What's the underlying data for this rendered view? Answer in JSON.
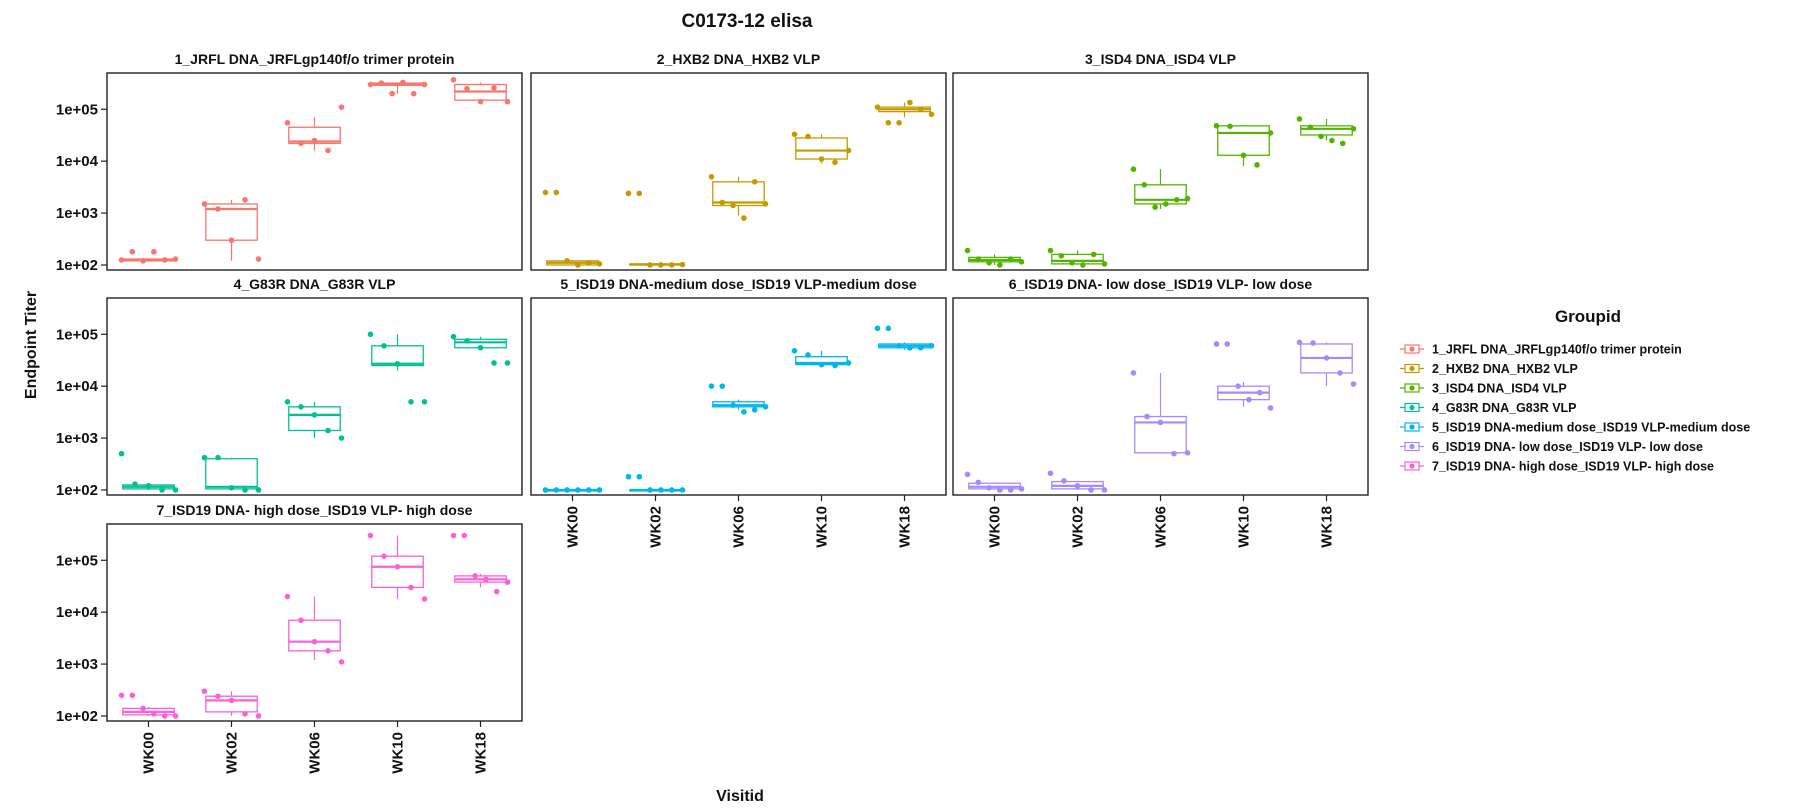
{
  "chart_data": {
    "type": "box",
    "title": "C0173-12 elisa",
    "xlabel": "Visitid",
    "ylabel": "Endpoint Titer",
    "yscale": "log10",
    "ylim": [
      80,
      500000
    ],
    "yticks": [
      100,
      1000,
      10000,
      100000
    ],
    "ytick_labels": [
      "1e+02",
      "1e+03",
      "1e+04",
      "1e+05"
    ],
    "categories": [
      "WK00",
      "WK02",
      "WK06",
      "WK10",
      "WK18"
    ],
    "legend": {
      "title": "Groupid",
      "position": "right"
    },
    "series": [
      {
        "name": "1_JRFL DNA_JRFLgp140f/o trimer protein",
        "color": "#F8766D",
        "boxes": [
          {
            "q1": 120,
            "median": 125,
            "q3": 130,
            "lo": 115,
            "hi": 135,
            "points": [
              125,
              180,
              120,
              180,
              125,
              130
            ]
          },
          {
            "q1": 300,
            "median": 1200,
            "q3": 1500,
            "lo": 120,
            "hi": 1800,
            "points": [
              1500,
              1200,
              300,
              1800,
              130
            ]
          },
          {
            "q1": 22000,
            "median": 24000,
            "q3": 45000,
            "lo": 16000,
            "hi": 70000,
            "points": [
              55000,
              22000,
              25000,
              16000,
              110000
            ]
          },
          {
            "q1": 290000,
            "median": 300000,
            "q3": 320000,
            "lo": 200000,
            "hi": 330000,
            "points": [
              300000,
              320000,
              200000,
              330000,
              200000,
              300000
            ]
          },
          {
            "q1": 150000,
            "median": 220000,
            "q3": 300000,
            "lo": 130000,
            "hi": 330000,
            "points": [
              370000,
              250000,
              140000,
              260000,
              140000
            ]
          }
        ]
      },
      {
        "name": "2_HXB2 DNA_HXB2 VLP",
        "color": "#C49A00",
        "boxes": [
          {
            "q1": 100,
            "median": 110,
            "q3": 120,
            "lo": 100,
            "hi": 125,
            "points": [
              2500,
              2500,
              120,
              100,
              110,
              105
            ]
          },
          {
            "q1": 100,
            "median": 102,
            "q3": 105,
            "lo": 100,
            "hi": 105,
            "points": [
              2400,
              2400,
              100,
              100,
              100,
              102
            ]
          },
          {
            "q1": 1400,
            "median": 1600,
            "q3": 4000,
            "lo": 900,
            "hi": 5000,
            "points": [
              5000,
              1600,
              1400,
              800,
              4000,
              1500
            ]
          },
          {
            "q1": 11000,
            "median": 16000,
            "q3": 28000,
            "lo": 9000,
            "hi": 33000,
            "points": [
              33000,
              30000,
              11000,
              9500,
              16000
            ]
          },
          {
            "q1": 90000,
            "median": 100000,
            "q3": 110000,
            "lo": 70000,
            "hi": 135000,
            "points": [
              110000,
              55000,
              55000,
              135000,
              100000,
              80000
            ]
          }
        ]
      },
      {
        "name": "3_ISD4 DNA_ISD4 VLP",
        "color": "#53B400",
        "boxes": [
          {
            "q1": 115,
            "median": 125,
            "q3": 140,
            "lo": 100,
            "hi": 160,
            "points": [
              190,
              130,
              110,
              100,
              130,
              115
            ]
          },
          {
            "q1": 105,
            "median": 120,
            "q3": 160,
            "lo": 100,
            "hi": 190,
            "points": [
              190,
              150,
              110,
              100,
              160,
              105
            ]
          },
          {
            "q1": 1500,
            "median": 1800,
            "q3": 3500,
            "lo": 1200,
            "hi": 7000,
            "points": [
              7000,
              3500,
              1300,
              1500,
              1800,
              1900
            ]
          },
          {
            "q1": 13000,
            "median": 35000,
            "q3": 48000,
            "lo": 8000,
            "hi": 50000,
            "points": [
              48000,
              47000,
              13000,
              8500,
              35000
            ]
          },
          {
            "q1": 32000,
            "median": 42000,
            "q3": 48000,
            "lo": 25000,
            "hi": 65000,
            "points": [
              65000,
              45000,
              30000,
              25000,
              22000,
              42000
            ]
          }
        ]
      },
      {
        "name": "4_G83R DNA_G83R VLP",
        "color": "#00C094",
        "boxes": [
          {
            "q1": 105,
            "median": 115,
            "q3": 125,
            "lo": 100,
            "hi": 130,
            "points": [
              500,
              130,
              120,
              100,
              100
            ]
          },
          {
            "q1": 105,
            "median": 115,
            "q3": 400,
            "lo": 100,
            "hi": 420,
            "points": [
              420,
              420,
              110,
              100,
              100
            ]
          },
          {
            "q1": 1400,
            "median": 2800,
            "q3": 4000,
            "lo": 1000,
            "hi": 5000,
            "points": [
              5000,
              4000,
              2800,
              1400,
              1000
            ]
          },
          {
            "q1": 25000,
            "median": 27000,
            "q3": 60000,
            "lo": 20000,
            "hi": 100000,
            "points": [
              100000,
              60000,
              27000,
              5000,
              5000
            ]
          },
          {
            "q1": 55000,
            "median": 70000,
            "q3": 80000,
            "lo": 50000,
            "hi": 90000,
            "points": [
              90000,
              75000,
              55000,
              28000,
              28000
            ]
          }
        ]
      },
      {
        "name": "5_ISD19 DNA-medium dose_ISD19 VLP-medium dose",
        "color": "#00B6EB",
        "boxes": [
          {
            "q1": 100,
            "median": 100,
            "q3": 100,
            "lo": 100,
            "hi": 100,
            "points": [
              100,
              100,
              100,
              100,
              100,
              100
            ]
          },
          {
            "q1": 100,
            "median": 100,
            "q3": 100,
            "lo": 100,
            "hi": 100,
            "points": [
              180,
              180,
              100,
              100,
              100,
              100
            ]
          },
          {
            "q1": 4000,
            "median": 4300,
            "q3": 5000,
            "lo": 3500,
            "hi": 5500,
            "points": [
              10000,
              10000,
              4300,
              3200,
              3500,
              4000
            ]
          },
          {
            "q1": 26000,
            "median": 28000,
            "q3": 37000,
            "lo": 24000,
            "hi": 48000,
            "points": [
              48000,
              40000,
              26000,
              25000,
              28000
            ]
          },
          {
            "q1": 55000,
            "median": 60000,
            "q3": 65000,
            "lo": 50000,
            "hi": 70000,
            "points": [
              130000,
              130000,
              60000,
              55000,
              55000,
              60000
            ]
          }
        ]
      },
      {
        "name": "6_ISD19 DNA- low dose_ISD19 VLP- low dose",
        "color": "#A58AFF",
        "boxes": [
          {
            "q1": 105,
            "median": 115,
            "q3": 135,
            "lo": 100,
            "hi": 140,
            "points": [
              200,
              140,
              110,
              100,
              100,
              105
            ]
          },
          {
            "q1": 105,
            "median": 120,
            "q3": 145,
            "lo": 100,
            "hi": 150,
            "points": [
              210,
              150,
              120,
              100,
              100
            ]
          },
          {
            "q1": 520,
            "median": 2000,
            "q3": 2600,
            "lo": 500,
            "hi": 18000,
            "points": [
              18000,
              2600,
              2000,
              500,
              520
            ]
          },
          {
            "q1": 5500,
            "median": 7500,
            "q3": 10000,
            "lo": 4000,
            "hi": 12000,
            "points": [
              65000,
              65000,
              10000,
              5500,
              7500,
              3800
            ]
          },
          {
            "q1": 18000,
            "median": 35000,
            "q3": 65000,
            "lo": 10000,
            "hi": 70000,
            "points": [
              70000,
              68000,
              35000,
              18000,
              11000
            ]
          }
        ]
      },
      {
        "name": "7_ISD19 DNA- high dose_ISD19 VLP- high dose",
        "color": "#FB61D7",
        "boxes": [
          {
            "q1": 105,
            "median": 120,
            "q3": 140,
            "lo": 100,
            "hi": 150,
            "points": [
              250,
              250,
              140,
              110,
              100,
              100
            ]
          },
          {
            "q1": 120,
            "median": 200,
            "q3": 240,
            "lo": 100,
            "hi": 300,
            "points": [
              300,
              240,
              200,
              110,
              100
            ]
          },
          {
            "q1": 1800,
            "median": 2700,
            "q3": 7000,
            "lo": 1200,
            "hi": 20000,
            "points": [
              20000,
              7000,
              2700,
              1800,
              1100
            ]
          },
          {
            "q1": 30000,
            "median": 75000,
            "q3": 120000,
            "lo": 18000,
            "hi": 300000,
            "points": [
              300000,
              120000,
              75000,
              30000,
              18000
            ]
          },
          {
            "q1": 38000,
            "median": 43000,
            "q3": 50000,
            "lo": 30000,
            "hi": 55000,
            "points": [
              300000,
              300000,
              50000,
              43000,
              25000,
              38000
            ]
          }
        ]
      }
    ]
  }
}
